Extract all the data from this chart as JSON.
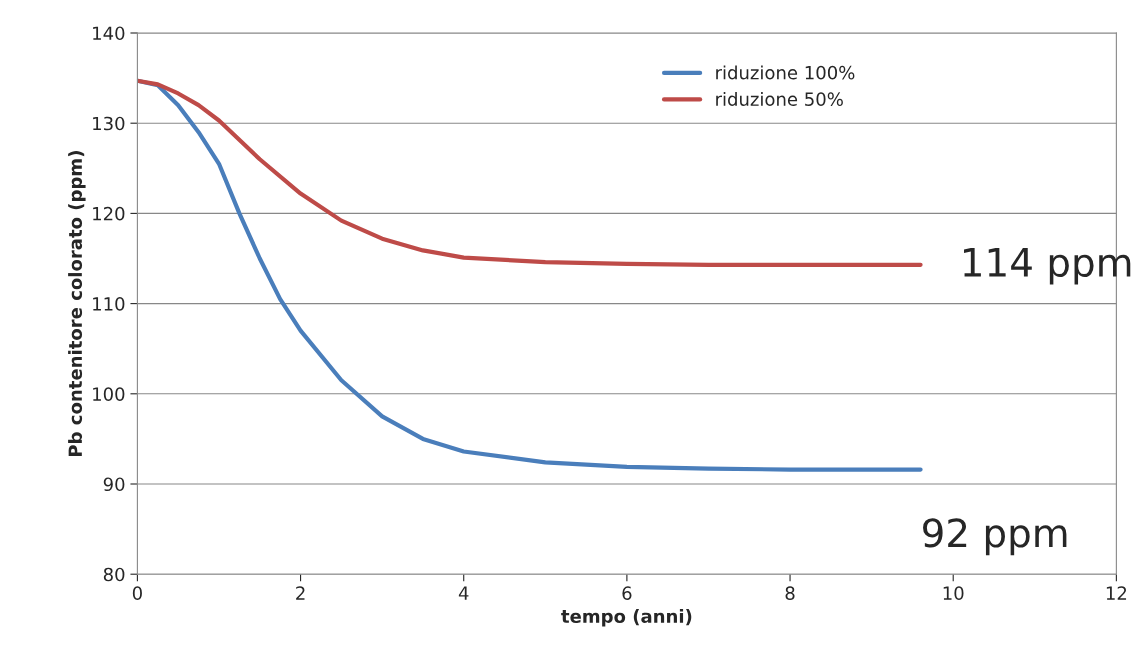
{
  "chart_data": {
    "type": "line",
    "xlabel": "tempo (anni)",
    "ylabel": "Pb contenitore colorato (ppm)",
    "xlim": [
      0,
      12
    ],
    "xticks": [
      0,
      2,
      4,
      6,
      8,
      10,
      12
    ],
    "ylim": [
      80,
      140
    ],
    "yticks": [
      80,
      90,
      100,
      110,
      120,
      130,
      140
    ],
    "grid": "y",
    "legend": "top right",
    "marker": "none",
    "line_style": "solid",
    "series": [
      {
        "name": "riduzione 100%",
        "color": "#4a7ebb",
        "x": [
          0,
          0.25,
          0.5,
          0.75,
          1,
          1.25,
          1.5,
          1.75,
          2,
          2.5,
          3,
          3.5,
          4,
          5,
          6,
          7,
          8,
          9.6
        ],
        "values": [
          134.7,
          134.2,
          132,
          129,
          125.5,
          120,
          115,
          110.5,
          107,
          101.5,
          97.5,
          95,
          93.6,
          92.4,
          91.9,
          91.7,
          91.6,
          91.6
        ]
      },
      {
        "name": "riduzione 50%",
        "color": "#be4b48",
        "x": [
          0,
          0.25,
          0.5,
          0.75,
          1,
          1.5,
          2,
          2.5,
          3,
          3.5,
          4,
          5,
          6,
          7,
          9.6
        ],
        "values": [
          134.7,
          134.3,
          133.3,
          132,
          130.3,
          126,
          122.2,
          119.2,
          117.2,
          115.9,
          115.1,
          114.6,
          114.4,
          114.3,
          114.3
        ]
      }
    ],
    "annotations": [
      "114 ppm",
      "92 ppm"
    ]
  }
}
